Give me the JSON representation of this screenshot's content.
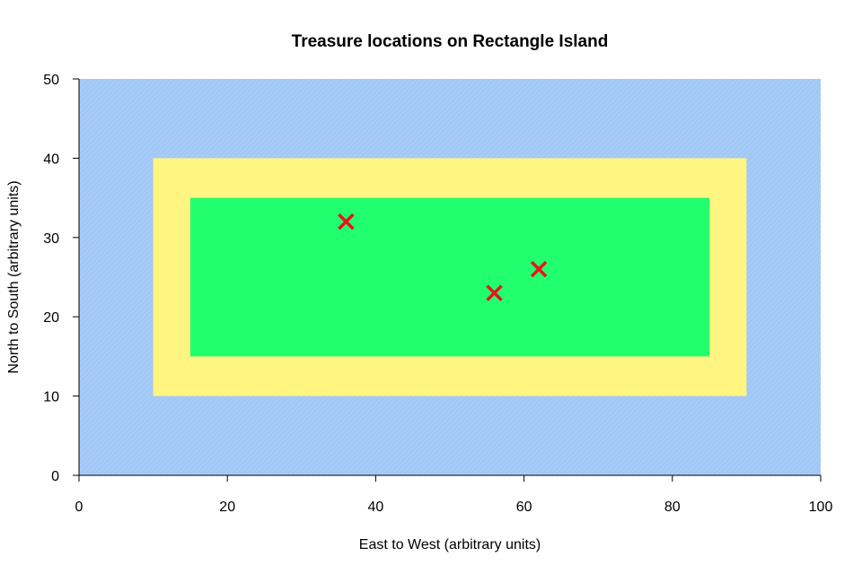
{
  "chart_data": {
    "type": "scatter",
    "title": "Treasure locations on Rectangle Island",
    "xlabel": "East to West (arbitrary units)",
    "ylabel": "North to South (arbitrary units)",
    "xlim": [
      0,
      100
    ],
    "ylim": [
      0,
      50
    ],
    "xticks": [
      0,
      20,
      40,
      60,
      80,
      100
    ],
    "yticks": [
      0,
      10,
      20,
      30,
      40,
      50
    ],
    "grid": false,
    "regions": [
      {
        "kind": "water",
        "x": [
          0,
          100
        ],
        "y": [
          0,
          50
        ],
        "color": "#a6cbf7"
      },
      {
        "kind": "beach",
        "x": [
          10,
          90
        ],
        "y": [
          10,
          40
        ],
        "color": "#fff580"
      },
      {
        "kind": "land",
        "x": [
          15,
          85
        ],
        "y": [
          15,
          35
        ],
        "color": "#22ff6e"
      }
    ],
    "series": [
      {
        "marker": "x",
        "color": "#e8141c",
        "x": [
          36,
          56,
          62
        ],
        "y": [
          32,
          23,
          26
        ]
      }
    ]
  }
}
